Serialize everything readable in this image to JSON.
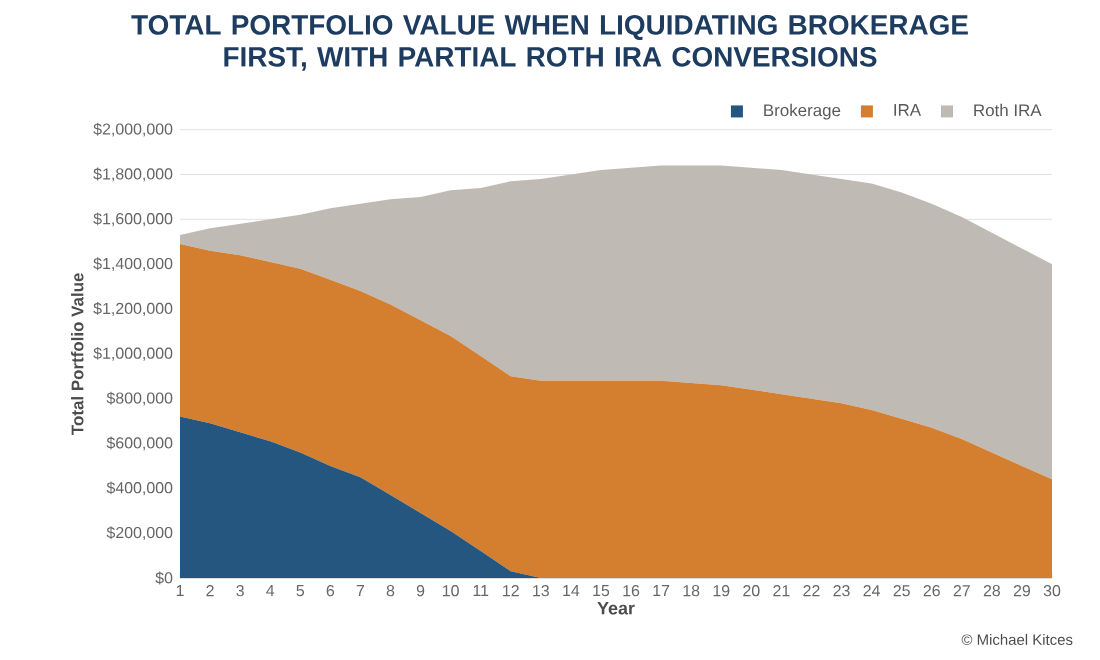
{
  "chart_data": {
    "type": "area",
    "title": "TOTAL PORTFOLIO VALUE WHEN LIQUIDATING BROKERAGE FIRST, WITH PARTIAL ROTH IRA CONVERSIONS",
    "xlabel": "Year",
    "ylabel": "Total Portfolio Value",
    "x": [
      1,
      2,
      3,
      4,
      5,
      6,
      7,
      8,
      9,
      10,
      11,
      12,
      13,
      14,
      15,
      16,
      17,
      18,
      19,
      20,
      21,
      22,
      23,
      24,
      25,
      26,
      27,
      28,
      29,
      30
    ],
    "xlim": [
      1,
      30
    ],
    "xticks": [
      1,
      2,
      3,
      4,
      5,
      6,
      7,
      8,
      9,
      10,
      11,
      12,
      13,
      14,
      15,
      16,
      17,
      18,
      19,
      20,
      21,
      22,
      23,
      24,
      25,
      26,
      27,
      28,
      29,
      30
    ],
    "ylim": [
      0,
      2000000
    ],
    "yticks": [
      {
        "value": 0,
        "label": "$0"
      },
      {
        "value": 200000,
        "label": "$200,000"
      },
      {
        "value": 400000,
        "label": "$400,000"
      },
      {
        "value": 600000,
        "label": "$600,000"
      },
      {
        "value": 800000,
        "label": "$800,000"
      },
      {
        "value": 1000000,
        "label": "$1,000,000"
      },
      {
        "value": 1200000,
        "label": "$1,200,000"
      },
      {
        "value": 1400000,
        "label": "$1,400,000"
      },
      {
        "value": 1600000,
        "label": "$1,600,000"
      },
      {
        "value": 1800000,
        "label": "$1,800,000"
      },
      {
        "value": 2000000,
        "label": "$2,000,000"
      }
    ],
    "stacked": true,
    "grid": "y",
    "legend": "top right",
    "series": [
      {
        "name": "Brokerage",
        "color": "#25567f",
        "values": [
          720000,
          690000,
          650000,
          610000,
          560000,
          500000,
          450000,
          370000,
          290000,
          210000,
          120000,
          30000,
          0,
          0,
          0,
          0,
          0,
          0,
          0,
          0,
          0,
          0,
          0,
          0,
          0,
          0,
          0,
          0,
          0,
          0
        ]
      },
      {
        "name": "IRA",
        "color": "#d47f2f",
        "values": [
          770000,
          770000,
          790000,
          800000,
          820000,
          830000,
          830000,
          850000,
          860000,
          870000,
          870000,
          870000,
          880000,
          880000,
          880000,
          880000,
          880000,
          870000,
          860000,
          840000,
          820000,
          800000,
          780000,
          750000,
          710000,
          670000,
          620000,
          560000,
          500000,
          440000
        ]
      },
      {
        "name": "Roth IRA",
        "color": "#c0bab4",
        "values": [
          40000,
          100000,
          140000,
          190000,
          240000,
          320000,
          390000,
          470000,
          550000,
          650000,
          750000,
          870000,
          900000,
          920000,
          940000,
          950000,
          960000,
          970000,
          980000,
          990000,
          1000000,
          1000000,
          1000000,
          1010000,
          1010000,
          1000000,
          990000,
          980000,
          970000,
          960000
        ]
      }
    ],
    "annotations": [
      "© Michael Kitces"
    ]
  }
}
